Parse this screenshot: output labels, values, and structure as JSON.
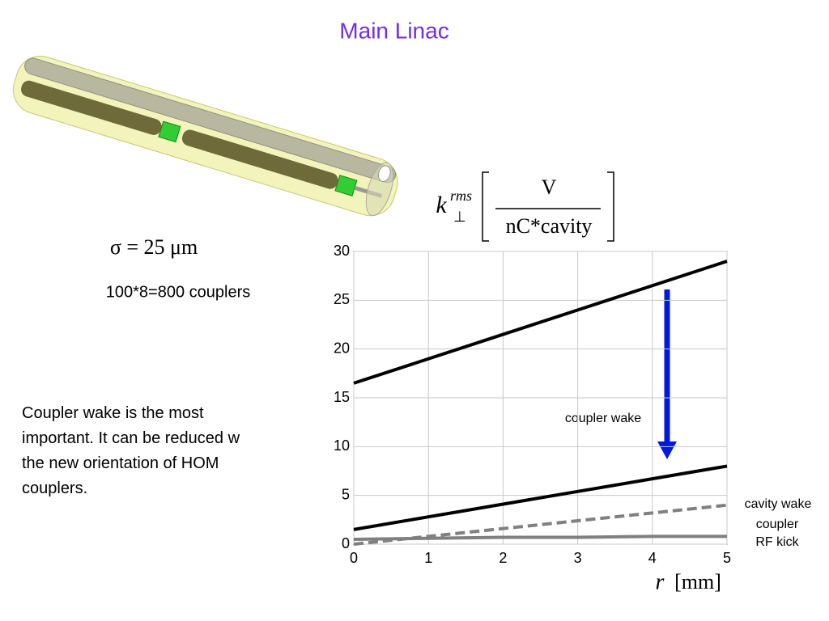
{
  "slide": {
    "title": "Main Linac",
    "sigma": "σ = 25 μm",
    "couplers": "100*8=800 couplers",
    "text_lines": [
      "Coupler wake is the most",
      "important. It can be reduced w",
      "the new orientation of HOM",
      "couplers."
    ]
  },
  "chart_data": {
    "type": "line",
    "ylabel": {
      "symbol": "k",
      "subscript": "⊥",
      "superscript": "rms",
      "numerator": "V",
      "denominator": "nC*cavity"
    },
    "xlabel": {
      "symbol": "r",
      "unit": "[mm]"
    },
    "annotation": "coupler wake",
    "x": [
      0,
      1,
      2,
      3,
      4,
      5
    ],
    "series": [
      {
        "color": "#000000",
        "dash": false,
        "values": [
          16.5,
          19,
          21.5,
          24,
          26.5,
          29
        ]
      },
      {
        "color": "#000000",
        "dash": false,
        "values": [
          1.5,
          2.8,
          4.1,
          5.4,
          6.7,
          8
        ]
      },
      {
        "name": "cavity wake",
        "color": "#808080",
        "dash": true,
        "values": [
          0,
          0.8,
          1.6,
          2.4,
          3.2,
          4
        ]
      },
      {
        "name": "coupler RF kick",
        "color": "#808080",
        "dash": false,
        "values": [
          0.5,
          0.6,
          0.7,
          0.7,
          0.8,
          0.8
        ]
      }
    ],
    "xlim": [
      0,
      5
    ],
    "xticks": [
      0,
      1,
      2,
      3,
      4,
      5
    ],
    "ylim": [
      0,
      30
    ],
    "yticks": [
      0,
      5,
      10,
      15,
      20,
      25,
      30
    ],
    "grid": true
  }
}
